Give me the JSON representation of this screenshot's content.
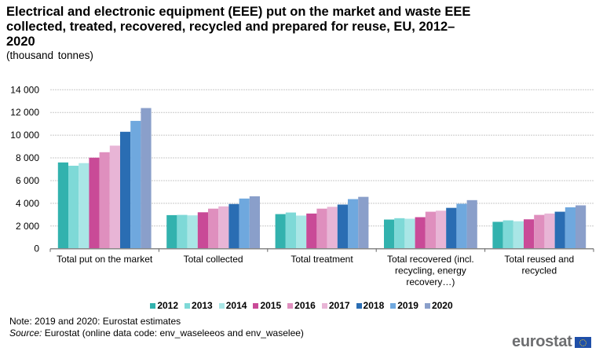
{
  "title": "Electrical and electronic equipment (EEE) put on the market and waste EEE collected, treated, recovered, recycled and prepared for reuse, EU, 2012–2020",
  "subtitle": "(thousand tonnes)",
  "note": "Note: 2019 and 2020: Eurostat estimates",
  "source_label": "Source:",
  "source_text": " Eurostat (online data code: env_waseleeos and env_waselee)",
  "logo_text": "eurostat",
  "chart_data": {
    "type": "bar",
    "title": "Electrical and electronic equipment (EEE) put on the market and waste EEE collected, treated, recovered, recycled and prepared for reuse, EU, 2012–2020",
    "subtitle": "(thousand tonnes)",
    "xlabel": "",
    "ylabel": "",
    "ylim": [
      0,
      14000
    ],
    "yticks": [
      0,
      2000,
      4000,
      6000,
      8000,
      10000,
      12000,
      14000
    ],
    "ytick_labels": [
      "0",
      "2 000",
      "4 000",
      "6 000",
      "8 000",
      "10 000",
      "12 000",
      "14 000"
    ],
    "grid": true,
    "legend_position": "bottom",
    "categories": [
      [
        "Total put on the market"
      ],
      [
        "Total collected"
      ],
      [
        "Total treatment"
      ],
      [
        "Total recovered (incl.",
        "recycling, energy",
        "recovery…)"
      ],
      [
        "Total reused and",
        "recycled"
      ]
    ],
    "series": [
      {
        "name": "2012",
        "color": "#32b2ae",
        "values": [
          7600,
          2960,
          3050,
          2570,
          2370
        ]
      },
      {
        "name": "2013",
        "color": "#7ed9d7",
        "values": [
          7310,
          2980,
          3190,
          2690,
          2500
        ]
      },
      {
        "name": "2014",
        "color": "#a9e6e6",
        "values": [
          7540,
          2940,
          2920,
          2640,
          2420
        ]
      },
      {
        "name": "2015",
        "color": "#c94a97",
        "values": [
          8020,
          3210,
          3100,
          2780,
          2590
        ]
      },
      {
        "name": "2016",
        "color": "#df8fbe",
        "values": [
          8500,
          3530,
          3530,
          3260,
          2980
        ]
      },
      {
        "name": "2017",
        "color": "#e8b5d6",
        "values": [
          9080,
          3730,
          3690,
          3350,
          3100
        ]
      },
      {
        "name": "2018",
        "color": "#2a6db3",
        "values": [
          10300,
          3940,
          3890,
          3600,
          3260
        ]
      },
      {
        "name": "2019",
        "color": "#6fa8de",
        "values": [
          11260,
          4420,
          4370,
          3960,
          3650
        ]
      },
      {
        "name": "2020",
        "color": "#8a9fca",
        "values": [
          12390,
          4620,
          4570,
          4280,
          3820
        ]
      }
    ]
  }
}
